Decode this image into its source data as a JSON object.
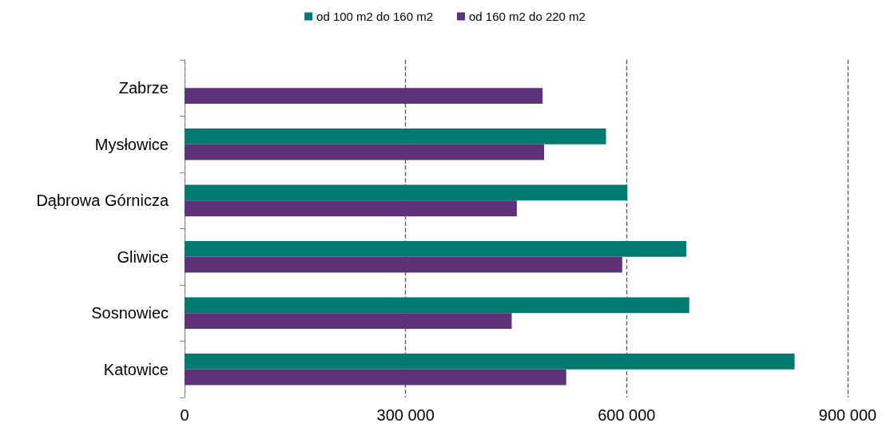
{
  "chart_data": {
    "type": "bar",
    "orientation": "horizontal",
    "categories": [
      "Zabrze",
      "Mysłowice",
      "Dąbrowa Górnicza",
      "Gliwice",
      "Sosnowiec",
      "Katowice"
    ],
    "series": [
      {
        "name": "od 100 m2 do 160 m2",
        "color": "#007b72",
        "values": [
          null,
          572000,
          601000,
          681000,
          685000,
          828000
        ]
      },
      {
        "name": "od 160 m2 do 220 m2",
        "color": "#5f3179",
        "values": [
          486000,
          488000,
          451000,
          594000,
          444000,
          518000
        ]
      }
    ],
    "xlim": [
      0,
      900000
    ],
    "xticks": [
      0,
      {
        "value": 300000,
        "label": "300 000"
      },
      {
        "value": 600000,
        "label": "600 000"
      },
      {
        "value": 900000,
        "label": "900 000"
      }
    ],
    "grid": "x",
    "legend": "top"
  }
}
